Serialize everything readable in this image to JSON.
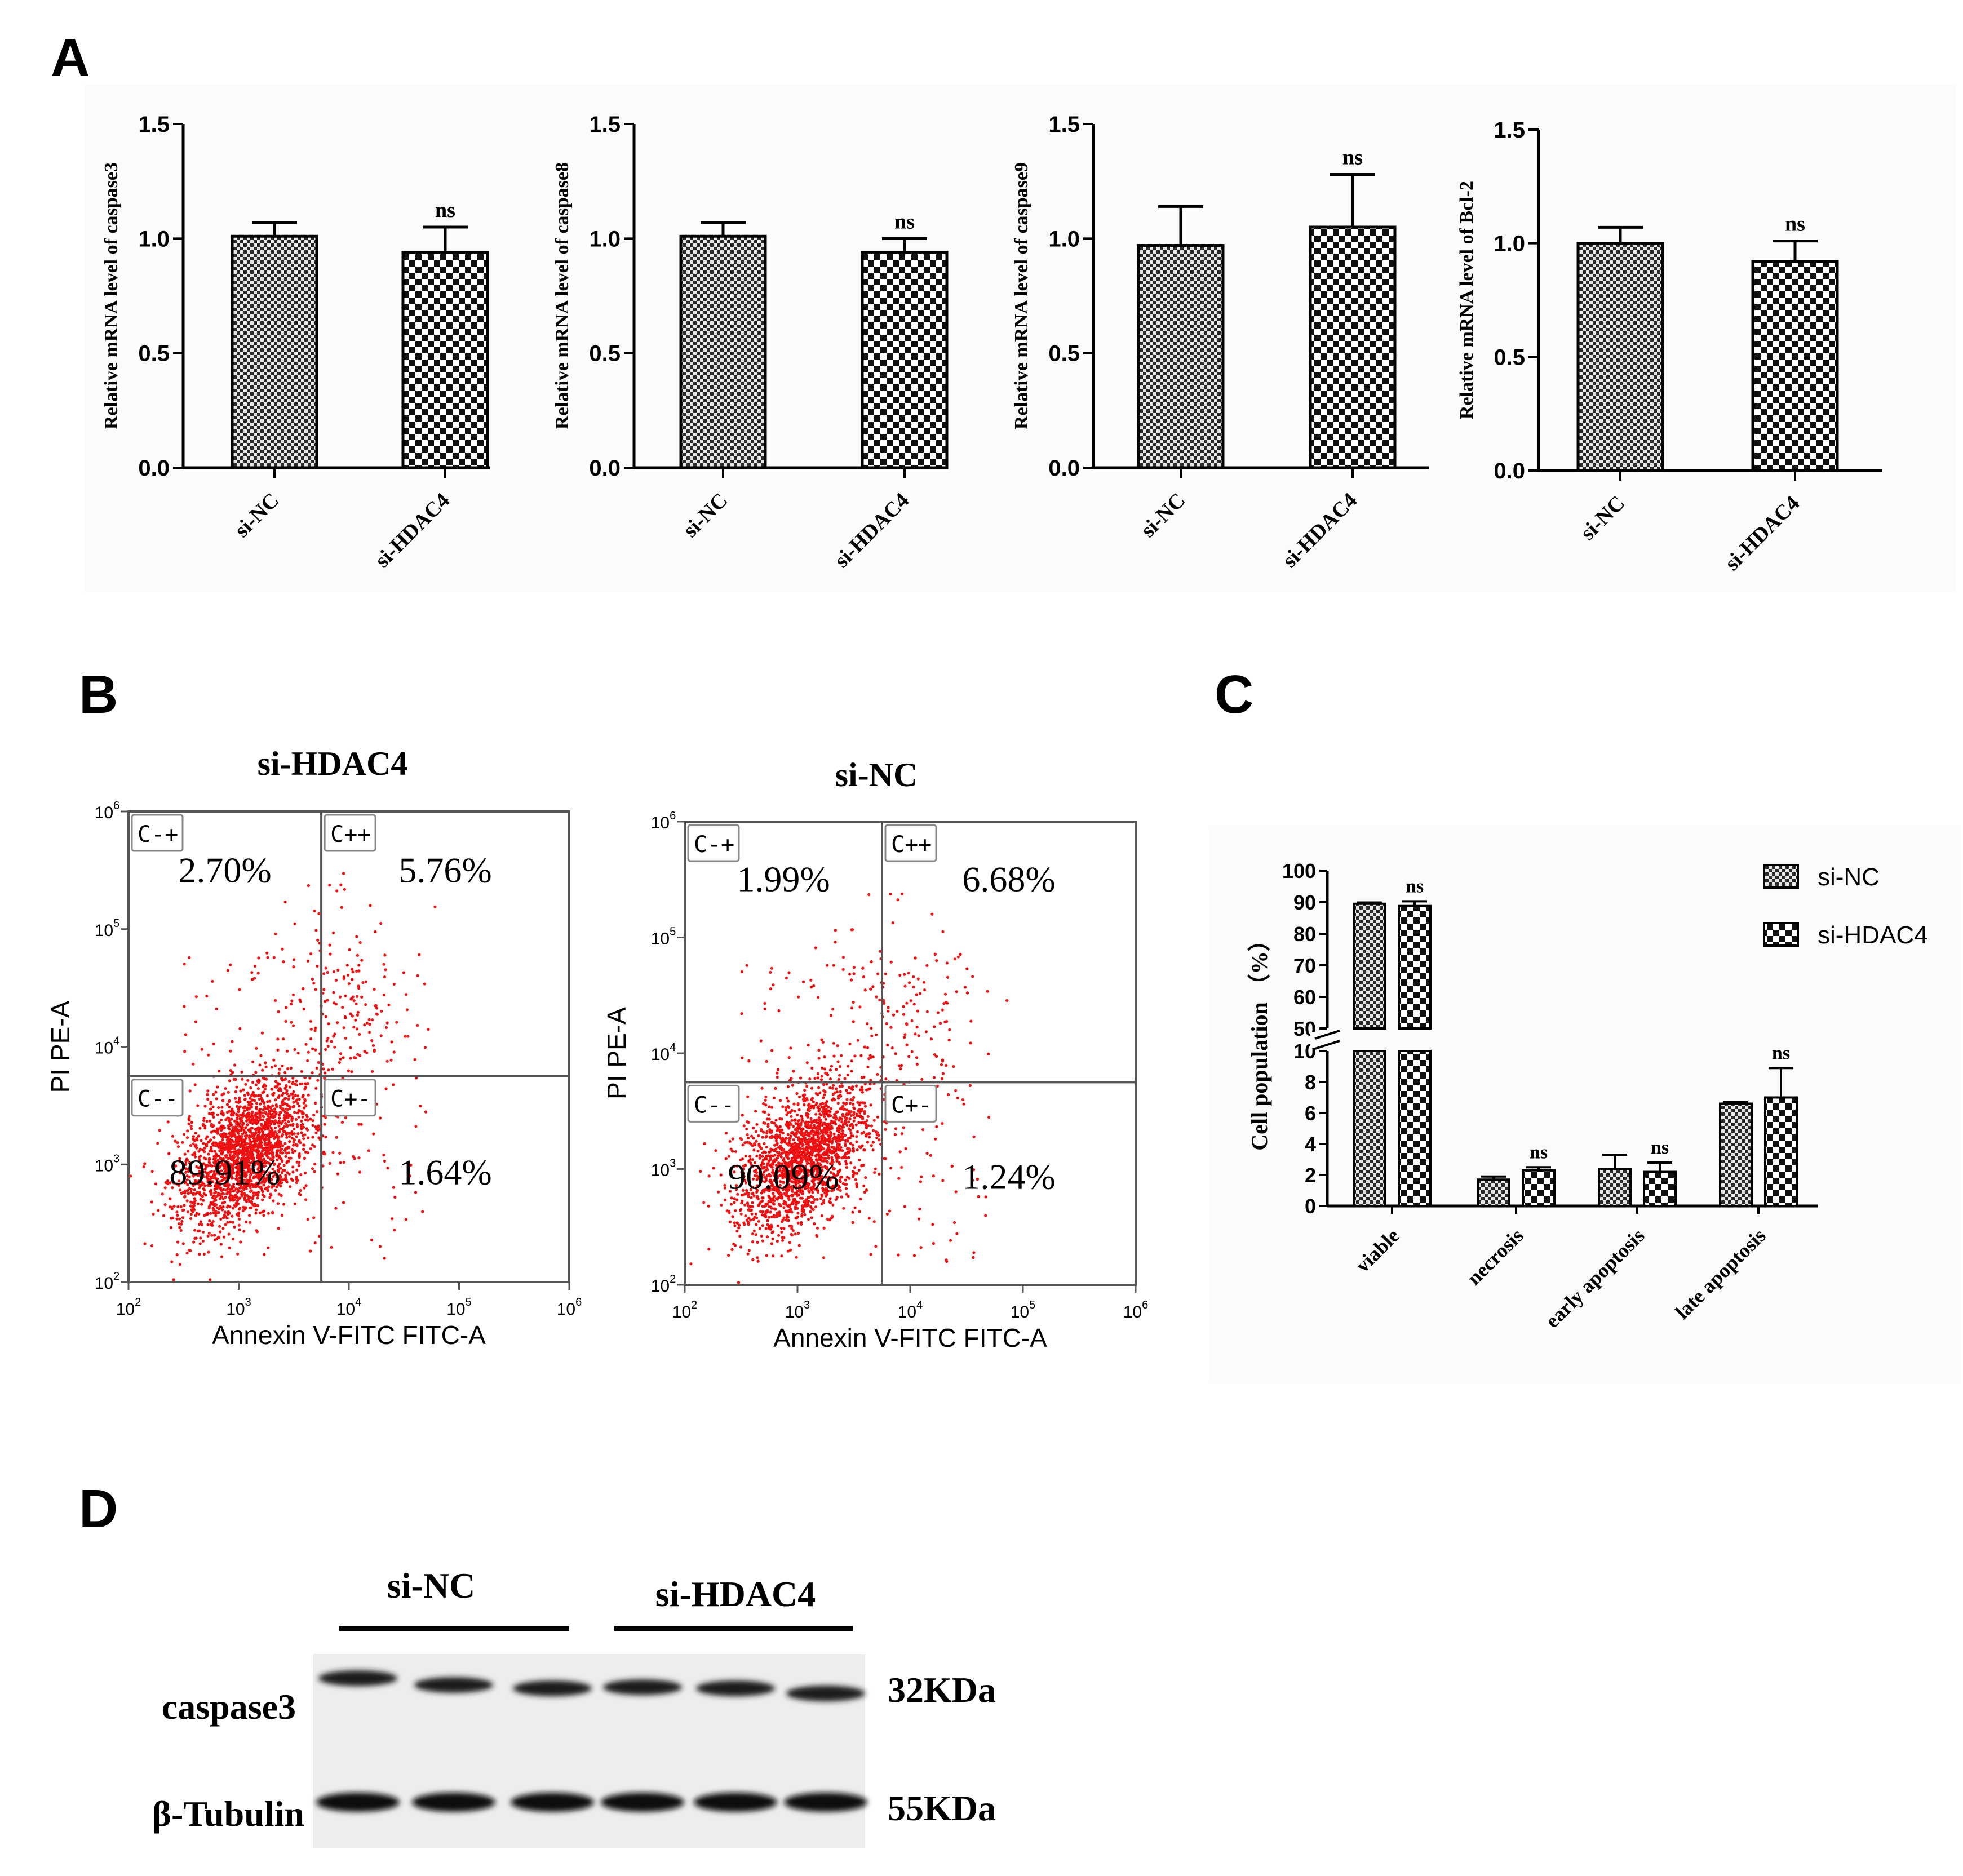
{
  "panel_labels": [
    "A",
    "B",
    "C",
    "D"
  ],
  "chart_data": [
    {
      "panel": "A",
      "type": "bar",
      "categories": [
        "si-NC",
        "si-HDAC4"
      ],
      "values": [
        1.01,
        0.94
      ],
      "errors": [
        0.06,
        0.11
      ],
      "annotations": [
        "",
        "ns"
      ],
      "ylabel": "Relative mRNA level of caspase3",
      "ylim": [
        0,
        1.5
      ],
      "yticks": [
        "0.0",
        "0.5",
        "1.0",
        "1.5"
      ]
    },
    {
      "panel": "A",
      "type": "bar",
      "categories": [
        "si-NC",
        "si-HDAC4"
      ],
      "values": [
        1.01,
        0.94
      ],
      "errors": [
        0.06,
        0.06
      ],
      "annotations": [
        "",
        "ns"
      ],
      "ylabel": "Relative mRNA level of caspase8",
      "ylim": [
        0,
        1.5
      ],
      "yticks": [
        "0.0",
        "0.5",
        "1.0",
        "1.5"
      ]
    },
    {
      "panel": "A",
      "type": "bar",
      "categories": [
        "si-NC",
        "si-HDAC4"
      ],
      "values": [
        0.97,
        1.05
      ],
      "errors": [
        0.17,
        0.23
      ],
      "annotations": [
        "",
        "ns"
      ],
      "ylabel": "Relative mRNA level of caspase9",
      "ylim": [
        0,
        1.5
      ],
      "yticks": [
        "0.0",
        "0.5",
        "1.0",
        "1.5"
      ]
    },
    {
      "panel": "A",
      "type": "bar",
      "categories": [
        "si-NC",
        "si-HDAC4"
      ],
      "values": [
        1.0,
        0.92
      ],
      "errors": [
        0.07,
        0.09
      ],
      "annotations": [
        "",
        "ns"
      ],
      "ylabel": "Relative mRNA level of Bcl-2",
      "ylim": [
        0,
        1.5
      ],
      "yticks": [
        "0.0",
        "0.5",
        "1.0",
        "1.5"
      ]
    },
    {
      "panel": "B",
      "type": "scatter",
      "title": "si-HDAC4",
      "xlabel": "Annexin V-FITC FITC-A",
      "ylabel": "PI PE-A",
      "xticks": [
        "10",
        "10",
        "10",
        "10",
        "10"
      ],
      "xexp": [
        "2",
        "3",
        "4",
        "5",
        "6"
      ],
      "yticks": [
        "10",
        "10",
        "10",
        "10",
        "10"
      ],
      "yexp": [
        "2",
        "3",
        "4",
        "5",
        "6"
      ],
      "quadrant_labels": [
        "C-+",
        "C++",
        "C--",
        "C+-"
      ],
      "quadrant_percents": [
        "2.70%",
        "5.76%",
        "89.91%",
        "1.64%"
      ]
    },
    {
      "panel": "B",
      "type": "scatter",
      "title": "si-NC",
      "xlabel": "Annexin V-FITC FITC-A",
      "ylabel": "PI PE-A",
      "xticks": [
        "10",
        "10",
        "10",
        "10",
        "10"
      ],
      "xexp": [
        "2",
        "3",
        "4",
        "5",
        "6"
      ],
      "yticks": [
        "10",
        "10",
        "10",
        "10",
        "10"
      ],
      "yexp": [
        "2",
        "3",
        "4",
        "5",
        "6"
      ],
      "quadrant_labels": [
        "C-+",
        "C++",
        "C--",
        "C+-"
      ],
      "quadrant_percents": [
        "1.99%",
        "6.68%",
        "90.09%",
        "1.24%"
      ]
    },
    {
      "panel": "C",
      "type": "bar",
      "categories": [
        "viable",
        "necrosis",
        "early apoptosis",
        "late apoptosis"
      ],
      "series": [
        {
          "name": "si-NC",
          "values": [
            89.5,
            1.7,
            2.4,
            6.6
          ],
          "errors": [
            0.4,
            0.2,
            0.9,
            0.1
          ]
        },
        {
          "name": "si-HDAC4",
          "values": [
            88.8,
            2.3,
            2.2,
            7.0
          ],
          "errors": [
            1.5,
            0.2,
            0.6,
            1.9
          ]
        }
      ],
      "annotations": [
        "ns",
        "ns",
        "ns",
        "ns"
      ],
      "ylabel": "Cell population （%）",
      "broken_axis": {
        "lower": [
          0,
          10
        ],
        "upper": [
          50,
          100
        ]
      },
      "yticks_lower": [
        "0",
        "2",
        "4",
        "6",
        "8",
        "10"
      ],
      "yticks_upper": [
        "50",
        "60",
        "70",
        "80",
        "90",
        "100"
      ]
    }
  ],
  "western_blot": {
    "groups": [
      "si-NC",
      "si-HDAC4"
    ],
    "rows": [
      {
        "protein": "caspase3",
        "size": "32KDa"
      },
      {
        "protein": "β-Tubulin",
        "size": "55KDa"
      }
    ]
  }
}
